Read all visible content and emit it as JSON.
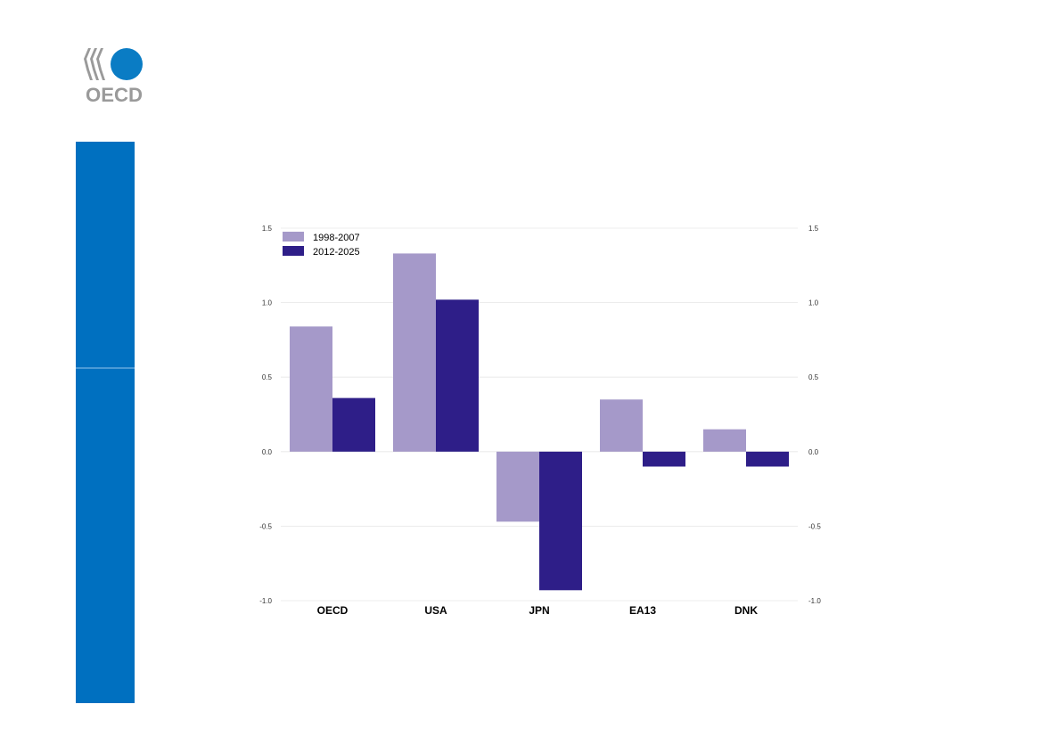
{
  "logo": {
    "text": "OECD",
    "colors": {
      "circle": "#0a7cc4",
      "text": "#9a9a9a"
    }
  },
  "sidebar": {
    "color": "#0070c0"
  },
  "chart_data": {
    "type": "bar",
    "categories": [
      "OECD",
      "USA",
      "JPN",
      "EA13",
      "DNK"
    ],
    "series": [
      {
        "name": "1998-2007",
        "color": "#a599c9",
        "values": [
          0.84,
          1.33,
          -0.47,
          0.35,
          0.15
        ]
      },
      {
        "name": "2012-2025",
        "color": "#2e1e88",
        "values": [
          0.36,
          1.02,
          -0.93,
          -0.1,
          -0.1
        ]
      }
    ],
    "ylim": [
      -1.0,
      1.5
    ],
    "yticks": [
      1.5,
      1.0,
      0.5,
      0.0,
      -0.5,
      -1.0
    ],
    "ytick_labels": [
      "1.5",
      "1.0",
      "0.5",
      "0.0",
      "-0.5",
      "-1.0"
    ],
    "dual_axis": true,
    "grid": true,
    "legend_position": "top-left"
  }
}
